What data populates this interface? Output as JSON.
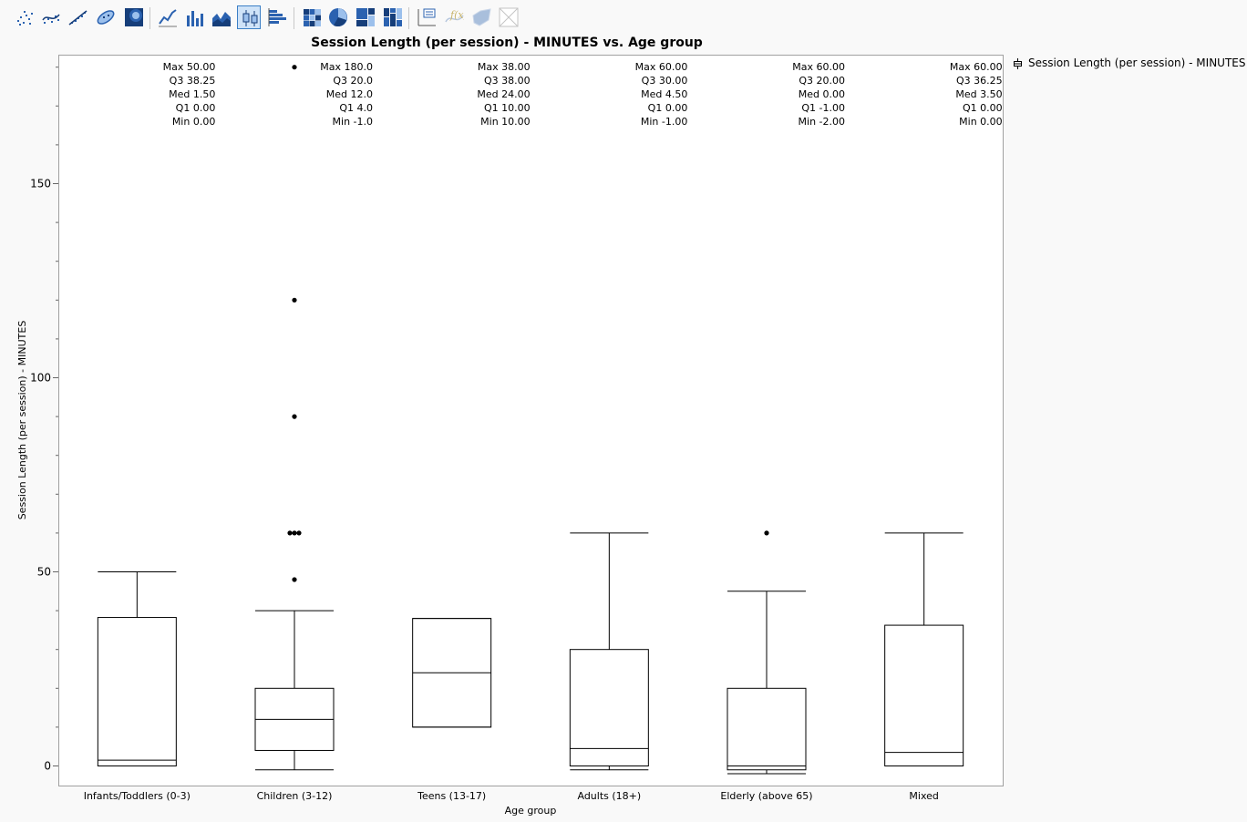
{
  "toolbar": {
    "buttons": [
      {
        "icon": "scatter-plot-icon"
      },
      {
        "icon": "smoother-icon"
      },
      {
        "icon": "fit-line-icon"
      },
      {
        "icon": "ellipse-icon"
      },
      {
        "icon": "contour-icon"
      },
      {
        "icon": "line-chart-icon"
      },
      {
        "icon": "bar-chart-icon"
      },
      {
        "icon": "area-chart-icon"
      },
      {
        "icon": "box-plot-icon",
        "active": true
      },
      {
        "icon": "histogram-icon"
      },
      {
        "icon": "heatmap-icon"
      },
      {
        "icon": "pie-chart-icon"
      },
      {
        "icon": "treemap-icon"
      },
      {
        "icon": "mosaic-icon"
      },
      {
        "icon": "caption-box-icon"
      },
      {
        "icon": "formula-icon"
      },
      {
        "icon": "map-shapes-icon"
      },
      {
        "icon": "parallel-plot-icon"
      }
    ]
  },
  "legend": {
    "label": "Session Length (per session) - MINUTES"
  },
  "chart_data": {
    "type": "box",
    "title": "Session Length (per session) - MINUTES vs. Age group",
    "xlabel": "Age group",
    "ylabel": "Session Length (per session) - MINUTES",
    "ylim": [
      -6,
      182
    ],
    "yticks": [
      0,
      50,
      100,
      150
    ],
    "grid": false,
    "legend_position": "top-right",
    "categories": [
      "Infants/Toddlers (0-3)",
      "Children (3-12)",
      "Teens (13-17)",
      "Adults (18+)",
      "Elderly (above 65)",
      "Mixed"
    ],
    "boxes": [
      {
        "max": 50,
        "q3": 38.25,
        "med": 1.5,
        "q1": 0,
        "min": 0,
        "whisker_low": 0,
        "whisker_high": 50,
        "outliers": [],
        "labels": {
          "max": "50.00",
          "q3": "38.25",
          "med": "1.50",
          "q1": "0.00",
          "min": "0.00"
        }
      },
      {
        "max": 180,
        "q3": 20,
        "med": 12,
        "q1": 4,
        "min": -1,
        "whisker_low": -1,
        "whisker_high": 40,
        "outliers": [
          48,
          60,
          60,
          60,
          90,
          120,
          180
        ],
        "labels": {
          "max": "180.0",
          "q3": "20.0",
          "med": "12.0",
          "q1": "4.0",
          "min": "-1.0"
        }
      },
      {
        "max": 38,
        "q3": 38,
        "med": 24,
        "q1": 10,
        "min": 10,
        "whisker_low": 10,
        "whisker_high": 38,
        "outliers": [],
        "labels": {
          "max": "38.00",
          "q3": "38.00",
          "med": "24.00",
          "q1": "10.00",
          "min": "10.00"
        }
      },
      {
        "max": 60,
        "q3": 30,
        "med": 4.5,
        "q1": 0,
        "min": -1,
        "whisker_low": -1,
        "whisker_high": 60,
        "outliers": [],
        "labels": {
          "max": "60.00",
          "q3": "30.00",
          "med": "4.50",
          "q1": "0.00",
          "min": "-1.00"
        }
      },
      {
        "max": 60,
        "q3": 20,
        "med": 0,
        "q1": -1,
        "min": -2,
        "whisker_low": -2,
        "whisker_high": 45,
        "outliers": [
          60
        ],
        "labels": {
          "max": "60.00",
          "q3": "20.00",
          "med": "0.00",
          "q1": "-1.00",
          "min": "-2.00"
        }
      },
      {
        "max": 60,
        "q3": 36.25,
        "med": 3.5,
        "q1": 0,
        "min": 0,
        "whisker_low": 0,
        "whisker_high": 60,
        "outliers": [],
        "labels": {
          "max": "60.00",
          "q3": "36.25",
          "med": "3.50",
          "q1": "0.00",
          "min": "0.00"
        }
      }
    ],
    "stat_names": {
      "max": "Max",
      "q3": "Q3",
      "med": "Med",
      "q1": "Q1",
      "min": "Min"
    }
  }
}
